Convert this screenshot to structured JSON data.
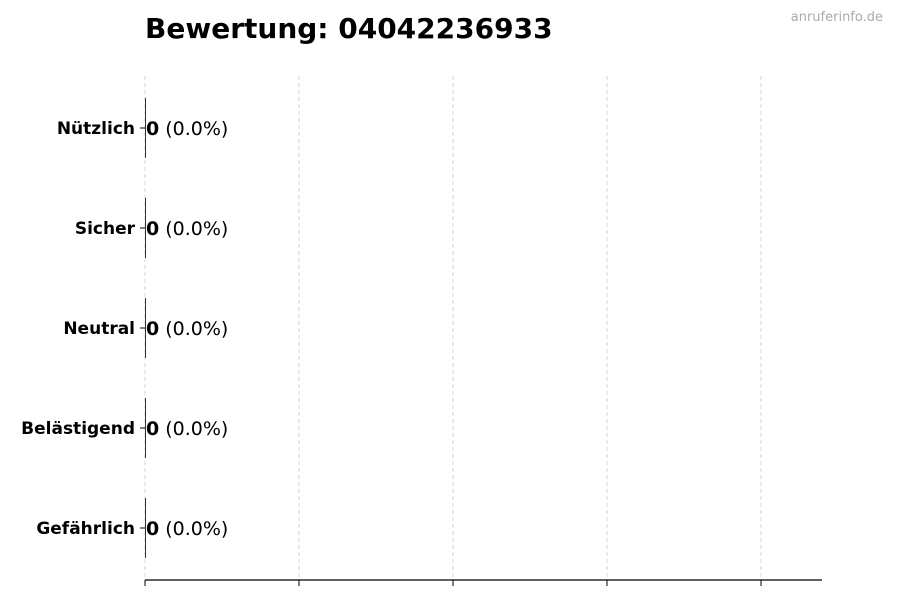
{
  "chart_data": {
    "type": "bar",
    "orientation": "horizontal",
    "title": "Bewertung: 04042236933",
    "categories": [
      "Nützlich",
      "Sicher",
      "Neutral",
      "Belästigend",
      "Gefährlich"
    ],
    "values": [
      0,
      0,
      0,
      0,
      0
    ],
    "data_labels": [
      {
        "count": "0",
        "percent": "(0.0%)"
      },
      {
        "count": "0",
        "percent": "(0.0%)"
      },
      {
        "count": "0",
        "percent": "(0.0%)"
      },
      {
        "count": "0",
        "percent": "(0.0%)"
      },
      {
        "count": "0",
        "percent": "(0.0%)"
      }
    ],
    "xlabel": "",
    "ylabel": "",
    "x_tick_count": 5,
    "grid": "vertical dashed",
    "grid_color": "#cccccc",
    "bar_color": "#333333"
  },
  "watermark": "anruferinfo.de"
}
